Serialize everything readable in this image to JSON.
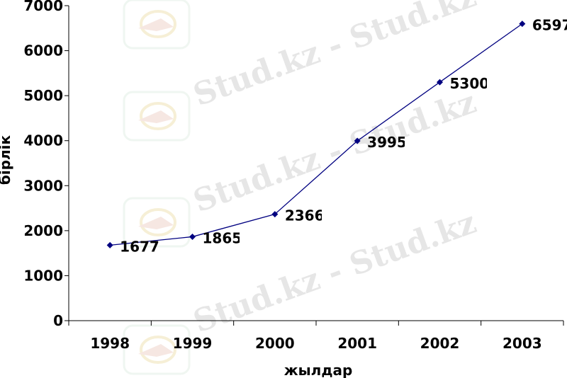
{
  "chart_data": {
    "type": "line",
    "categories": [
      "1998",
      "1999",
      "2000",
      "2001",
      "2002",
      "2003"
    ],
    "series": [
      {
        "values": [
          1677,
          1865,
          2366,
          3995,
          5300,
          6597
        ],
        "color": "#000080"
      }
    ],
    "data_labels": [
      "1677",
      "1865",
      "2366",
      "3995",
      "5300",
      "6597"
    ],
    "xlabel": "жылдар",
    "ylabel": "бірлік",
    "ylim": [
      0,
      7000
    ],
    "yticks": [
      0,
      1000,
      2000,
      3000,
      4000,
      5000,
      6000,
      7000
    ],
    "grid": false,
    "legend": "none"
  },
  "watermark": {
    "text": "Stud.kz - Stud.kz",
    "color": "#e6e6e6"
  }
}
